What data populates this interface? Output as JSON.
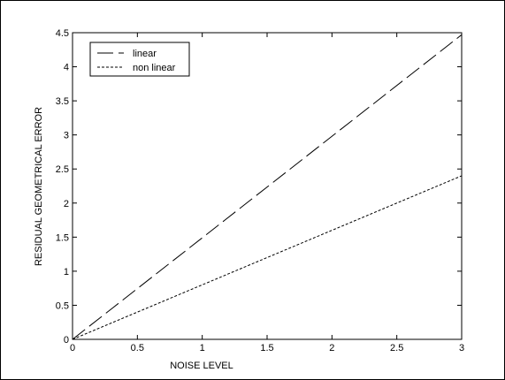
{
  "chart_data": {
    "type": "line",
    "title": "",
    "xlabel": "NOISE LEVEL",
    "ylabel": "RESIDUAL GEOMETRICAL ERROR",
    "xlim": [
      0,
      3
    ],
    "ylim": [
      0,
      4.5
    ],
    "xticks": [
      "0",
      "0.5",
      "1",
      "1.5",
      "2",
      "2.5",
      "3"
    ],
    "yticks": [
      "0",
      "0.5",
      "1",
      "1.5",
      "2",
      "2.5",
      "3",
      "3.5",
      "4",
      "4.5"
    ],
    "grid": false,
    "legend_position": "top-left",
    "series": [
      {
        "name": "linear",
        "line_style": "long-dash",
        "color": "#000000",
        "x": [
          0,
          3
        ],
        "y": [
          0,
          4.47
        ]
      },
      {
        "name": "non linear",
        "line_style": "dotted",
        "color": "#000000",
        "x": [
          0,
          3
        ],
        "y": [
          0,
          2.4
        ]
      }
    ]
  }
}
